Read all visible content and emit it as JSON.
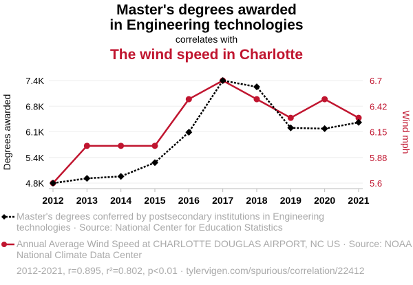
{
  "chart_data": {
    "type": "line",
    "title_line1": "Master's degrees awarded",
    "title_line2": "in Engineering technologies",
    "subtitle": "correlates with",
    "title2": "The wind speed in Charlotte",
    "x": [
      "2012",
      "2013",
      "2014",
      "2015",
      "2016",
      "2017",
      "2018",
      "2019",
      "2020",
      "2021"
    ],
    "left_axis": {
      "label": "Degrees awarded",
      "ticks": [
        "4.8K",
        "5.4K",
        "6.1K",
        "6.8K",
        "7.4K"
      ],
      "range": [
        4800,
        7400
      ]
    },
    "right_axis": {
      "label": "Wind mph",
      "ticks": [
        "5.6",
        "5.88",
        "6.15",
        "6.42",
        "6.7"
      ],
      "range": [
        5.6,
        6.7
      ]
    },
    "series": [
      {
        "name": "Master's degrees conferred by postsecondary institutions in Engineering technologies",
        "axis": "left",
        "color": "#000000",
        "values": [
          4800,
          4920,
          4970,
          5320,
          6090,
          7400,
          7240,
          6200,
          6180,
          6340
        ]
      },
      {
        "name": "Annual Average Wind Speed at CHARLOTTE DOUGLAS AIRPORT, NC US",
        "axis": "right",
        "color": "#c0152f",
        "values": [
          5.6,
          6.0,
          6.0,
          6.0,
          6.5,
          6.7,
          6.5,
          6.3,
          6.5,
          6.3
        ]
      }
    ],
    "legend": [
      {
        "line1": "Master's degrees conferred by postsecondary institutions in Engineering",
        "line2": "technologies · Source: National Center for Education Statistics"
      },
      {
        "line1": "Annual Average Wind Speed at CHARLOTTE DOUGLAS AIRPORT, NC US · Source: NOAA",
        "line2": "National Climate Data Center"
      }
    ],
    "footer": "2012-2021, r=0.895, r²=0.802, p<0.01 · tylervigen.com/spurious/correlation/22412"
  }
}
